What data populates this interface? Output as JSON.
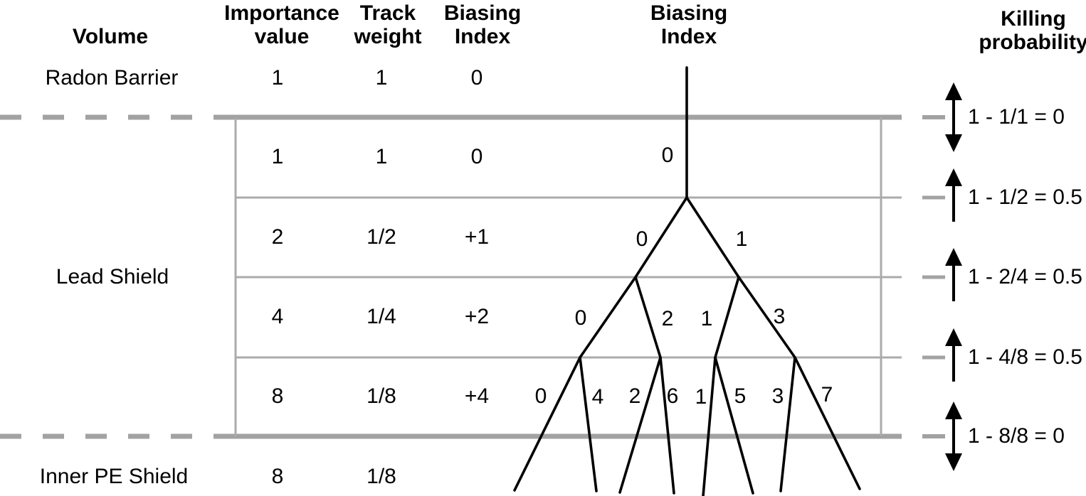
{
  "headers": {
    "volume": "Volume",
    "importance": "Importance\nvalue",
    "track_weight": "Track\nweight",
    "biasing_index": "Biasing\nIndex",
    "biasing_index_tree": "Biasing\nIndex",
    "killing_probability": "Killing\nprobability"
  },
  "volumes": [
    {
      "name": "Radon Barrier",
      "importance": "1",
      "track_weight": "1",
      "biasing_index": "0"
    },
    {
      "name": "Lead Shield",
      "layers": [
        {
          "importance": "1",
          "track_weight": "1",
          "biasing_index": "0",
          "branch_labels": [
            "0"
          ]
        },
        {
          "importance": "2",
          "track_weight": "1/2",
          "biasing_index": "+1",
          "branch_labels": [
            "0",
            "1"
          ]
        },
        {
          "importance": "4",
          "track_weight": "1/4",
          "biasing_index": "+2",
          "branch_labels": [
            "0",
            "2",
            "1",
            "3"
          ]
        },
        {
          "importance": "8",
          "track_weight": "1/8",
          "biasing_index": "+4",
          "branch_labels": [
            "0",
            "4",
            "2",
            "6",
            "1",
            "5",
            "3",
            "7"
          ]
        }
      ]
    },
    {
      "name": "Inner PE Shield",
      "importance": "8",
      "track_weight": "1/8"
    }
  ],
  "killing_probabilities": [
    {
      "formula": "1 - 1/1 = 0",
      "arrow": "double"
    },
    {
      "formula": "1 - 1/2 = 0.5",
      "arrow": "up"
    },
    {
      "formula": "1 - 2/4 = 0.5",
      "arrow": "up"
    },
    {
      "formula": "1 - 4/8 = 0.5",
      "arrow": "up"
    },
    {
      "formula": "1 - 8/8 = 0",
      "arrow": "double"
    }
  ],
  "colors": {
    "grid_grey": "#a2a2a2",
    "grid_grey_light": "#ababab",
    "tree_black": "#000000",
    "text_black": "#000000",
    "background": "#ffffff"
  }
}
